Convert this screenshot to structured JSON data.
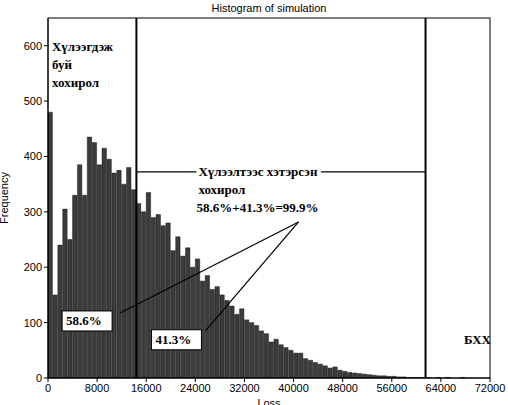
{
  "chart_data": {
    "type": "histogram",
    "title": "Histogram of simulation",
    "x_label": "Loss",
    "y_label": "Frequency",
    "bins": [
      0,
      800,
      1600,
      2400,
      3200,
      4000,
      4800,
      5600,
      6400,
      7200,
      8000,
      8800,
      9600,
      10400,
      11200,
      12000,
      12800,
      13600,
      14400,
      15200,
      16000,
      16800,
      17600,
      18400,
      19200,
      20000,
      20800,
      21600,
      22400,
      23200,
      24000,
      24800,
      25600,
      26400,
      27200,
      28000,
      28800,
      29600,
      30400,
      31200,
      32000,
      32800,
      33600,
      34400,
      35200,
      36000,
      36800,
      37600,
      38400,
      39200,
      40000,
      40800,
      41600,
      42400,
      43200,
      44000,
      44800,
      45600,
      46400,
      47200,
      48000,
      48800,
      49600,
      50400,
      51200,
      52000,
      52800,
      53600,
      54400,
      55200,
      56000,
      56800,
      57600,
      58400,
      59200,
      60000,
      60800,
      61600,
      62400,
      63200,
      64000,
      64800,
      65600,
      66400,
      67200,
      68000
    ],
    "values": [
      480,
      150,
      240,
      305,
      250,
      330,
      385,
      330,
      435,
      425,
      385,
      415,
      395,
      370,
      375,
      350,
      380,
      340,
      315,
      300,
      335,
      290,
      295,
      275,
      280,
      230,
      255,
      220,
      235,
      200,
      215,
      175,
      185,
      160,
      165,
      150,
      140,
      130,
      115,
      125,
      105,
      100,
      95,
      85,
      80,
      65,
      70,
      60,
      55,
      50,
      45,
      45,
      35,
      32,
      28,
      25,
      22,
      18,
      20,
      14,
      12,
      10,
      9,
      8,
      7,
      6,
      5,
      4,
      4,
      3,
      3,
      2,
      2,
      1,
      1,
      1,
      1,
      1,
      0,
      1,
      0,
      1,
      0,
      0,
      1
    ],
    "color": "#3c3c3c",
    "xlim": [
      0,
      72000
    ],
    "xticks": [
      0,
      8000,
      16000,
      24000,
      32000,
      40000,
      48000,
      56000,
      64000,
      72000
    ],
    "ylim": [
      0,
      650
    ],
    "yticks": [
      0,
      100,
      200,
      300,
      400,
      500,
      600
    ],
    "grid": false,
    "vlines": [
      14400,
      61500
    ],
    "annotations": [
      {
        "text": "Хүлээгдэж\nбуй\nхохирол",
        "x": 650,
        "y": 598
      },
      {
        "text": "Хүлээлтээс хэтэрсэн\nхохирол",
        "x": 24500,
        "y": 372
      },
      {
        "text": "58.6%+41.3%=99.9%",
        "x": 24200,
        "y": 307
      },
      {
        "text": "58.6%",
        "x": 2950,
        "y": 103
      },
      {
        "text": "41.3%",
        "x": 17500,
        "y": 69
      },
      {
        "text": "БХХ",
        "x": 67750,
        "y": 69
      }
    ]
  }
}
